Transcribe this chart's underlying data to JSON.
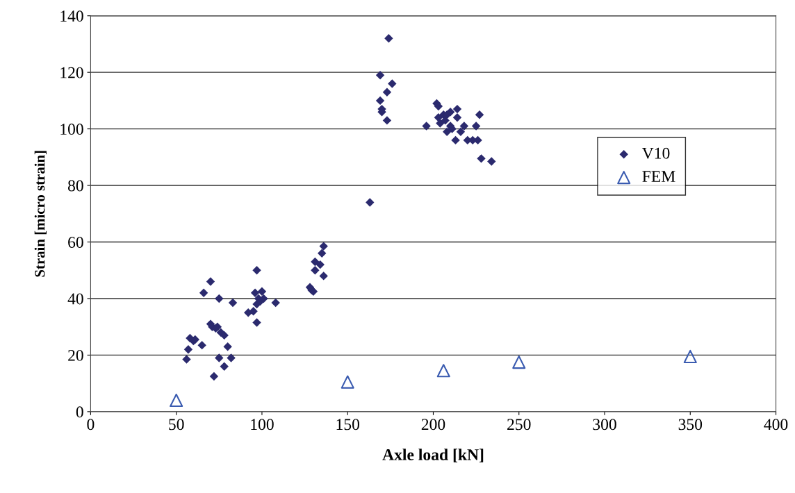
{
  "chart_data": {
    "type": "scatter",
    "xlabel": "Axle load [kN]",
    "ylabel": "Strain [micro strain]",
    "xlim": [
      0,
      400
    ],
    "xticks": [
      0,
      50,
      100,
      150,
      200,
      250,
      300,
      350,
      400
    ],
    "ylim": [
      0,
      140
    ],
    "yticks": [
      0,
      20,
      40,
      60,
      80,
      100,
      120,
      140
    ],
    "grid": "y",
    "legend": "right",
    "series": [
      {
        "name": "V10",
        "color": "#2b2a6e",
        "marker": "diamond",
        "x": [
          56,
          57,
          58,
          60,
          61,
          65,
          66,
          70,
          70,
          71,
          72,
          73,
          74,
          75,
          75,
          76,
          78,
          78,
          80,
          82,
          83,
          92,
          95,
          96,
          97,
          97,
          97,
          98,
          99,
          100,
          101,
          108,
          128,
          129,
          130,
          131,
          131,
          134,
          135,
          136,
          136,
          163,
          169,
          169,
          170,
          170,
          173,
          173,
          174,
          176,
          196,
          202,
          203,
          203,
          204,
          206,
          207,
          208,
          208,
          210,
          210,
          211,
          213,
          214,
          214,
          216,
          218,
          220,
          223,
          225,
          226,
          227,
          228,
          234
        ],
        "values": [
          18.5,
          22,
          26,
          25,
          25.5,
          23.5,
          42,
          46,
          31,
          30,
          12.5,
          29.5,
          30,
          19,
          40,
          28,
          27,
          16,
          23,
          19,
          38.5,
          35,
          35.5,
          42,
          31.5,
          50,
          38,
          40,
          39,
          42.5,
          40,
          38.5,
          44,
          43,
          42.5,
          53,
          50,
          52,
          56,
          58.5,
          48,
          74,
          110,
          119,
          107,
          106,
          103,
          113,
          132,
          116,
          101,
          109,
          108,
          104,
          102,
          105,
          103,
          99,
          105,
          106,
          101,
          100,
          96,
          107,
          104,
          99,
          101,
          96,
          96,
          101,
          96,
          105,
          89.5,
          88.5
        ]
      },
      {
        "name": "FEM",
        "color": "#3a5bb0",
        "marker": "triangle",
        "x": [
          50,
          150,
          206,
          250,
          350
        ],
        "values": [
          4,
          10.5,
          14.5,
          17.5,
          19.5
        ]
      }
    ]
  }
}
